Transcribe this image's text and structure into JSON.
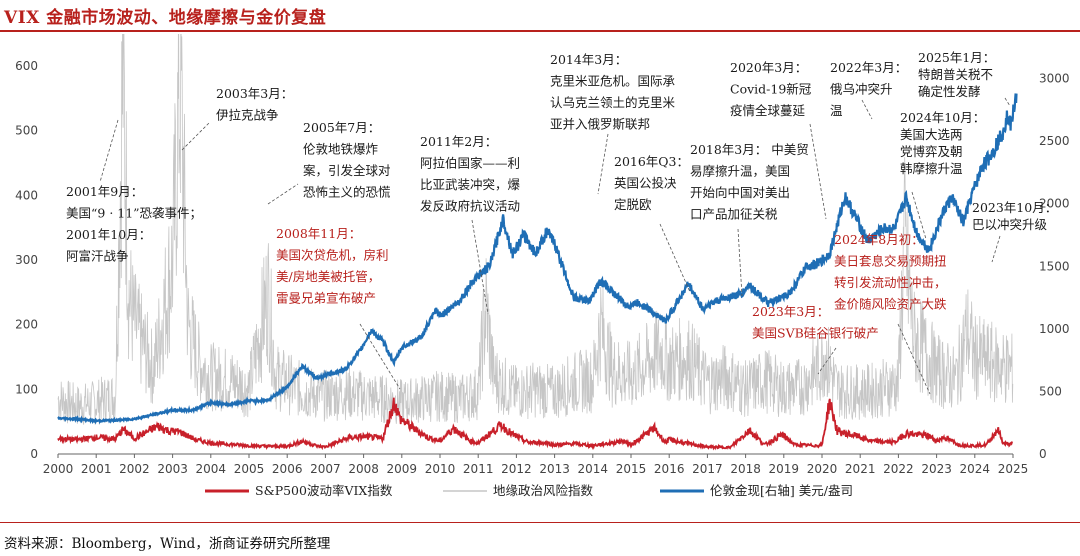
{
  "page": {
    "title": "VIX 金融市场波动、地缘摩擦与金价复盘",
    "source": "资料来源：Bloomberg，Wind，浙商证券研究所整理"
  },
  "colors": {
    "vix": "#c8202a",
    "gpr": "#c6c6c6",
    "gold": "#1f6eb5",
    "accent": "#b8211d",
    "annotation_dark": "#1a1a1a",
    "annotation_red": "#b8211d"
  },
  "chart_data": {
    "type": "line",
    "title": "",
    "x_range": [
      2000,
      2025
    ],
    "x_ticks": [
      "2000",
      "2001",
      "2002",
      "2003",
      "2004",
      "2005",
      "2006",
      "2007",
      "2008",
      "2009",
      "2010",
      "2011",
      "2012",
      "2013",
      "2014",
      "2015",
      "2016",
      "2017",
      "2018",
      "2019",
      "2020",
      "2021",
      "2022",
      "2023",
      "2024",
      "2025"
    ],
    "y_left": {
      "range": [
        0,
        600
      ],
      "ticks": [
        "0",
        "100",
        "200",
        "300",
        "400",
        "500",
        "600"
      ]
    },
    "y_right": {
      "range": [
        0,
        3100
      ],
      "ticks": [
        "0",
        "500",
        "1000",
        "1500",
        "2000",
        "2500",
        "3000"
      ]
    },
    "grid": false,
    "legend_position": "bottom",
    "series": [
      {
        "name": "S&P500波动率VIX指数",
        "axis": "left",
        "color": "#c8202a",
        "points": [
          [
            2000,
            24
          ],
          [
            2000.5,
            22
          ],
          [
            2001,
            26
          ],
          [
            2001.5,
            23
          ],
          [
            2001.7,
            38
          ],
          [
            2002,
            24
          ],
          [
            2002.6,
            43
          ],
          [
            2002.9,
            36
          ],
          [
            2003.2,
            34
          ],
          [
            2003.6,
            22
          ],
          [
            2004,
            17
          ],
          [
            2004.5,
            15
          ],
          [
            2005,
            13
          ],
          [
            2005.5,
            12
          ],
          [
            2006,
            12
          ],
          [
            2006.4,
            20
          ],
          [
            2006.8,
            12
          ],
          [
            2007,
            11
          ],
          [
            2007.6,
            25
          ],
          [
            2008,
            27
          ],
          [
            2008.5,
            24
          ],
          [
            2008.8,
            80
          ],
          [
            2008.95,
            55
          ],
          [
            2009.3,
            40
          ],
          [
            2009.7,
            25
          ],
          [
            2010,
            20
          ],
          [
            2010.35,
            40
          ],
          [
            2010.8,
            20
          ],
          [
            2011,
            17
          ],
          [
            2011.6,
            45
          ],
          [
            2011.9,
            30
          ],
          [
            2012.3,
            18
          ],
          [
            2012.8,
            17
          ],
          [
            2013,
            14
          ],
          [
            2013.5,
            16
          ],
          [
            2014,
            13
          ],
          [
            2014.8,
            20
          ],
          [
            2015,
            14
          ],
          [
            2015.6,
            40
          ],
          [
            2015.9,
            18
          ],
          [
            2016,
            22
          ],
          [
            2016.5,
            16
          ],
          [
            2017,
            11
          ],
          [
            2017.6,
            10
          ],
          [
            2018.1,
            37
          ],
          [
            2018.5,
            14
          ],
          [
            2018.95,
            30
          ],
          [
            2019.3,
            14
          ],
          [
            2019.9,
            13
          ],
          [
            2020.0,
            14
          ],
          [
            2020.2,
            82
          ],
          [
            2020.4,
            35
          ],
          [
            2020.9,
            28
          ],
          [
            2021.3,
            20
          ],
          [
            2021.9,
            18
          ],
          [
            2022.2,
            32
          ],
          [
            2022.8,
            28
          ],
          [
            2023,
            20
          ],
          [
            2023.2,
            26
          ],
          [
            2023.6,
            14
          ],
          [
            2024,
            13
          ],
          [
            2024.3,
            14
          ],
          [
            2024.6,
            38
          ],
          [
            2024.75,
            16
          ],
          [
            2024.95,
            15
          ],
          [
            2025.0,
            17
          ]
        ]
      },
      {
        "name": "地缘政治风险指数",
        "axis": "left",
        "color": "#c6c6c6",
        "points": [
          [
            2000,
            85
          ],
          [
            2000.5,
            75
          ],
          [
            2001,
            80
          ],
          [
            2001.5,
            90
          ],
          [
            2001.7,
            600
          ],
          [
            2001.85,
            250
          ],
          [
            2002,
            200
          ],
          [
            2002.5,
            130
          ],
          [
            2003.0,
            300
          ],
          [
            2003.2,
            590
          ],
          [
            2003.4,
            200
          ],
          [
            2003.7,
            140
          ],
          [
            2004,
            120
          ],
          [
            2004.5,
            115
          ],
          [
            2005,
            100
          ],
          [
            2005.5,
            250
          ],
          [
            2005.7,
            120
          ],
          [
            2006,
            110
          ],
          [
            2006.5,
            95
          ],
          [
            2007,
            90
          ],
          [
            2007.5,
            95
          ],
          [
            2008,
            90
          ],
          [
            2008.5,
            85
          ],
          [
            2009,
            80
          ],
          [
            2009.5,
            85
          ],
          [
            2010,
            90
          ],
          [
            2010.5,
            85
          ],
          [
            2011,
            95
          ],
          [
            2011.2,
            230
          ],
          [
            2011.4,
            120
          ],
          [
            2011.8,
            100
          ],
          [
            2012,
            95
          ],
          [
            2012.5,
            100
          ],
          [
            2013,
            95
          ],
          [
            2013.5,
            110
          ],
          [
            2014,
            115
          ],
          [
            2014.2,
            200
          ],
          [
            2014.5,
            130
          ],
          [
            2015,
            120
          ],
          [
            2015.8,
            160
          ],
          [
            2016,
            140
          ],
          [
            2016.5,
            150
          ],
          [
            2017,
            110
          ],
          [
            2017.5,
            120
          ],
          [
            2018,
            100
          ],
          [
            2018.5,
            115
          ],
          [
            2019,
            100
          ],
          [
            2019.5,
            105
          ],
          [
            2020,
            140
          ],
          [
            2020.05,
            160
          ],
          [
            2020.4,
            100
          ],
          [
            2021,
            95
          ],
          [
            2021.5,
            100
          ],
          [
            2022,
            110
          ],
          [
            2022.15,
            330
          ],
          [
            2022.4,
            180
          ],
          [
            2022.8,
            150
          ],
          [
            2023,
            130
          ],
          [
            2023.5,
            115
          ],
          [
            2023.8,
            190
          ],
          [
            2023.95,
            160
          ],
          [
            2024,
            150
          ],
          [
            2024.5,
            140
          ],
          [
            2025,
            130
          ]
        ]
      },
      {
        "name": "伦敦金现[右轴] 美元/盎司",
        "axis": "right",
        "color": "#1f6eb5",
        "points": [
          [
            2000,
            285
          ],
          [
            2000.5,
            280
          ],
          [
            2001,
            265
          ],
          [
            2001.5,
            270
          ],
          [
            2002,
            280
          ],
          [
            2002.5,
            315
          ],
          [
            2003,
            350
          ],
          [
            2003.5,
            350
          ],
          [
            2004,
            410
          ],
          [
            2004.5,
            395
          ],
          [
            2005,
            425
          ],
          [
            2005.5,
            430
          ],
          [
            2006,
            540
          ],
          [
            2006.4,
            700
          ],
          [
            2006.8,
            600
          ],
          [
            2007,
            635
          ],
          [
            2007.5,
            670
          ],
          [
            2007.9,
            820
          ],
          [
            2008.2,
            990
          ],
          [
            2008.5,
            900
          ],
          [
            2008.8,
            730
          ],
          [
            2009,
            850
          ],
          [
            2009.5,
            930
          ],
          [
            2009.9,
            1150
          ],
          [
            2010,
            1100
          ],
          [
            2010.5,
            1220
          ],
          [
            2010.9,
            1400
          ],
          [
            2011.3,
            1500
          ],
          [
            2011.65,
            1880
          ],
          [
            2011.9,
            1600
          ],
          [
            2012.2,
            1750
          ],
          [
            2012.5,
            1600
          ],
          [
            2012.8,
            1780
          ],
          [
            2013,
            1680
          ],
          [
            2013.3,
            1420
          ],
          [
            2013.5,
            1250
          ],
          [
            2013.9,
            1220
          ],
          [
            2014.2,
            1380
          ],
          [
            2014.5,
            1300
          ],
          [
            2014.9,
            1180
          ],
          [
            2015.2,
            1210
          ],
          [
            2015.5,
            1150
          ],
          [
            2015.9,
            1060
          ],
          [
            2016.5,
            1360
          ],
          [
            2016.9,
            1150
          ],
          [
            2017,
            1190
          ],
          [
            2017.5,
            1250
          ],
          [
            2017.9,
            1280
          ],
          [
            2018.1,
            1350
          ],
          [
            2018.6,
            1200
          ],
          [
            2018.9,
            1240
          ],
          [
            2019.2,
            1300
          ],
          [
            2019.6,
            1500
          ],
          [
            2019.9,
            1520
          ],
          [
            2020.2,
            1600
          ],
          [
            2020.6,
            2060
          ],
          [
            2020.9,
            1880
          ],
          [
            2021.2,
            1700
          ],
          [
            2021.6,
            1800
          ],
          [
            2021.9,
            1800
          ],
          [
            2022.2,
            2050
          ],
          [
            2022.5,
            1750
          ],
          [
            2022.8,
            1630
          ],
          [
            2023.2,
            1950
          ],
          [
            2023.4,
            2050
          ],
          [
            2023.7,
            1850
          ],
          [
            2023.9,
            2050
          ],
          [
            2024.2,
            2300
          ],
          [
            2024.4,
            2380
          ],
          [
            2024.7,
            2550
          ],
          [
            2024.85,
            2700
          ],
          [
            2024.95,
            2630
          ],
          [
            2025.1,
            2900
          ]
        ]
      }
    ],
    "annotations": [
      {
        "lines": [
          "2003年3月：",
          "伊拉克战争"
        ],
        "color": "dark"
      },
      {
        "lines": [
          "2001年9月：",
          "美国“9 · 11”恐袭事件；",
          "2001年10月：",
          "阿富汗战争"
        ],
        "color": "dark"
      },
      {
        "lines": [
          "2005年7月：",
          "伦敦地铁爆炸",
          "案，引发全球对",
          "恐怖主义的恐慌"
        ],
        "color": "dark"
      },
      {
        "lines": [
          "2008年11月：",
          "美国次贷危机，房利",
          "美/房地美被托管，",
          "雷曼兄弟宣布破产"
        ],
        "color": "red"
      },
      {
        "lines": [
          "2011年2月：",
          "阿拉伯国家——利",
          "比亚武装冲突，爆",
          "发反政府抗议活动"
        ],
        "color": "dark"
      },
      {
        "lines": [
          "2014年3月：",
          "克里米亚危机。国际承",
          "认乌克兰领土的克里米",
          "亚并入俄罗斯联邦"
        ],
        "color": "dark"
      },
      {
        "lines": [
          "2016年Q3：",
          "英国公投决",
          "定脱欧"
        ],
        "color": "dark"
      },
      {
        "lines": [
          "2018年3月：  中美贸",
          "易摩擦升温，美国",
          "开始向中国对美出",
          "口产品加征关税"
        ],
        "color": "dark"
      },
      {
        "lines": [
          "2020年3月：",
          "Covid-19新冠",
          "疫情全球蔓延"
        ],
        "color": "dark"
      },
      {
        "lines": [
          "2022年3月：",
          "俄乌冲突升",
          "温"
        ],
        "color": "dark"
      },
      {
        "lines": [
          "2025年1月：",
          "特朗普关税不",
          "确定性发酵"
        ],
        "color": "dark"
      },
      {
        "lines": [
          "2024年10月：",
          "美国大选两",
          "党博弈及朝",
          "韩摩擦升温"
        ],
        "color": "dark"
      },
      {
        "lines": [
          "2023年10月：",
          "巴以冲突升级"
        ],
        "color": "dark"
      },
      {
        "lines": [
          "2024年8月初：",
          "美日套息交易预期扭",
          "转引发流动性冲击，",
          "金价随风险资产大跌"
        ],
        "color": "red"
      },
      {
        "lines": [
          "2023年3月：",
          "美国SVB硅谷银行破产"
        ],
        "color": "red"
      }
    ]
  }
}
